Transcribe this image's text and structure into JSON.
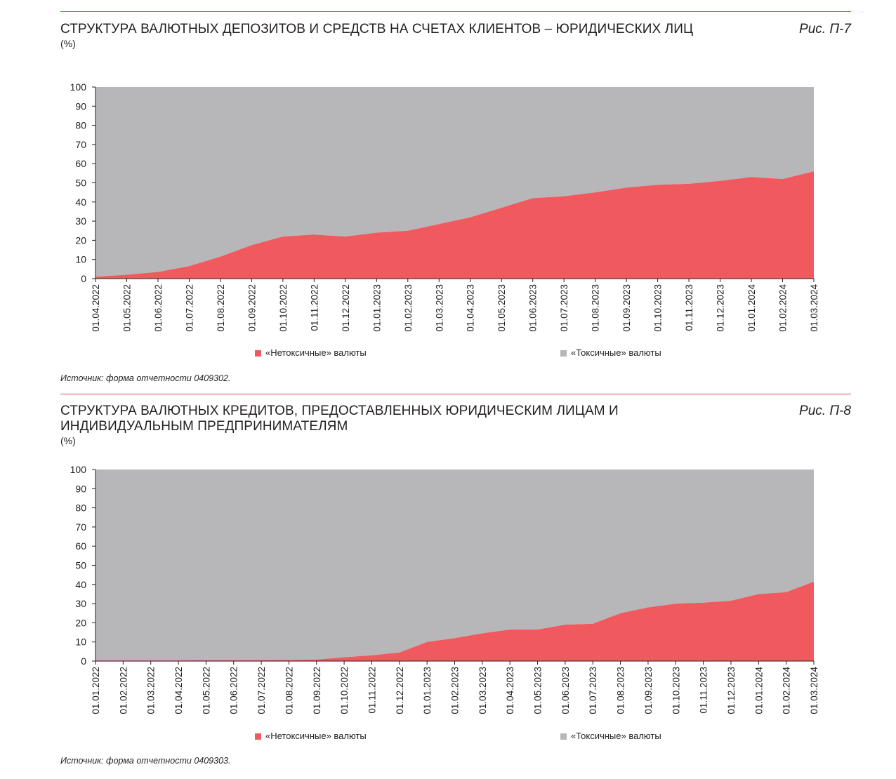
{
  "colors": {
    "nontoxic": "#f05a5e",
    "toxic": "#b7b7b9",
    "rule": "#e8474c",
    "text": "#231f20"
  },
  "figures": [
    {
      "title": "СТРУКТУРА ВАЛЮТНЫХ ДЕПОЗИТОВ И СРЕДСТВ НА СЧЕТАХ КЛИЕНТОВ – ЮРИДИЧЕСКИХ ЛИЦ",
      "fig_label": "Рис. П-7",
      "unit": "(%)",
      "source": "Источник: форма отчетности 0409302.",
      "legend": {
        "nontoxic": "«Нетоксичные» валюты",
        "toxic": "«Токсичные» валюты"
      }
    },
    {
      "title": "СТРУКТУРА ВАЛЮТНЫХ КРЕДИТОВ, ПРЕДОСТАВЛЕННЫХ ЮРИДИЧЕСКИМ ЛИЦАМ И ИНДИВИДУАЛЬНЫМ ПРЕДПРИНИМАТЕЛЯМ",
      "fig_label": "Рис. П-8",
      "unit": "(%)",
      "source": "Источник: форма отчетности 0409303.",
      "legend": {
        "nontoxic": "«Нетоксичные» валюты",
        "toxic": "«Токсичные» валюты"
      }
    }
  ],
  "chart_data": [
    {
      "type": "area",
      "stacked": true,
      "ylim": [
        0,
        100
      ],
      "yticks": [
        0,
        10,
        20,
        30,
        40,
        50,
        60,
        70,
        80,
        90,
        100
      ],
      "categories": [
        "01.04.2022",
        "01.05.2022",
        "01.06.2022",
        "01.07.2022",
        "01.08.2022",
        "01.09.2022",
        "01.10.2022",
        "01.11.2022",
        "01.12.2022",
        "01.01.2023",
        "01.02.2023",
        "01.03.2023",
        "01.04.2023",
        "01.05.2023",
        "01.06.2023",
        "01.07.2023",
        "01.08.2023",
        "01.09.2023",
        "01.10.2023",
        "01.11.2023",
        "01.12.2023",
        "01.01.2024",
        "01.02.2024",
        "01.03.2024"
      ],
      "series": [
        {
          "name": "«Нетоксичные» валюты",
          "values": [
            1,
            2,
            3.5,
            6.5,
            11.5,
            17.5,
            22,
            23,
            22,
            24,
            25,
            28.5,
            32,
            37,
            42,
            43,
            45,
            47.5,
            49,
            49.5,
            51,
            53,
            52,
            56
          ]
        },
        {
          "name": "«Токсичные» валюты",
          "values": [
            99,
            98,
            96.5,
            93.5,
            88.5,
            82.5,
            78,
            77,
            78,
            76,
            75,
            71.5,
            68,
            63,
            58,
            57,
            55,
            52.5,
            51,
            50.5,
            49,
            47,
            48,
            44
          ]
        }
      ],
      "legend": "bottom"
    },
    {
      "type": "area",
      "stacked": true,
      "ylim": [
        0,
        100
      ],
      "yticks": [
        0,
        10,
        20,
        30,
        40,
        50,
        60,
        70,
        80,
        90,
        100
      ],
      "categories": [
        "01.01.2022",
        "01.02.2022",
        "01.03.2022",
        "01.04.2022",
        "01.05.2022",
        "01.06.2022",
        "01.07.2022",
        "01.08.2022",
        "01.09.2022",
        "01.10.2022",
        "01.11.2022",
        "01.12.2022",
        "01.01.2023",
        "01.02.2023",
        "01.03.2023",
        "01.04.2023",
        "01.05.2023",
        "01.06.2023",
        "01.07.2023",
        "01.08.2023",
        "01.09.2023",
        "01.10.2023",
        "01.11.2023",
        "01.12.2023",
        "01.01.2024",
        "01.02.2024",
        "01.03.2024"
      ],
      "series": [
        {
          "name": "«Нетоксичные» валюты",
          "values": [
            0.3,
            0.3,
            0.3,
            0.3,
            0.4,
            0.4,
            0.5,
            0.6,
            0.8,
            2,
            3,
            4.5,
            10,
            12,
            14.5,
            16.5,
            16.5,
            19,
            19.5,
            25,
            28,
            30,
            30.5,
            31.5,
            35,
            36,
            41.5
          ]
        },
        {
          "name": "«Токсичные» валюты",
          "values": [
            99.7,
            99.7,
            99.7,
            99.7,
            99.6,
            99.6,
            99.5,
            99.4,
            99.2,
            98,
            97,
            95.5,
            90,
            88,
            85.5,
            83.5,
            83.5,
            81,
            80.5,
            75,
            72,
            70,
            69.5,
            68.5,
            65,
            64,
            58.5
          ]
        }
      ],
      "legend": "bottom"
    }
  ]
}
